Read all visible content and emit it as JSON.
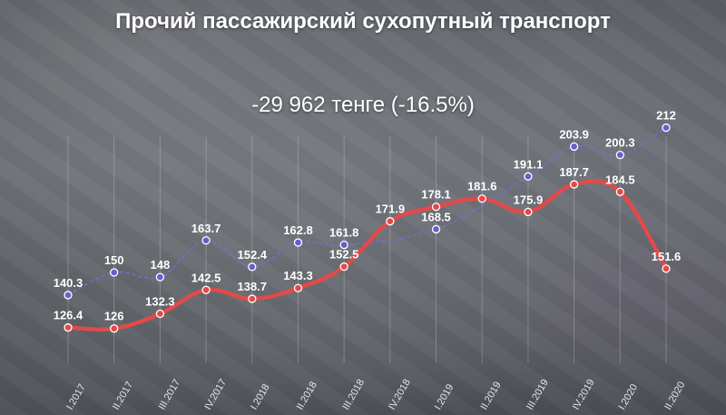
{
  "title": "Прочий пассажирский сухопутный транспорт",
  "subtitle": "-29 962 тенге (-16.5%)",
  "chart_data": {
    "type": "line",
    "categories": [
      "I.2017",
      "II.2017",
      "III.2017",
      "IV.2017",
      "I.2018",
      "II.2018",
      "III.2018",
      "IV.2018",
      "I.2019",
      "II.2019",
      "III.2019",
      "IV.2019",
      "I.2020",
      "II.2020"
    ],
    "series": [
      {
        "color": "#7a6ad8",
        "line_style": "dashed",
        "values": [
          140.3,
          150,
          148,
          163.7,
          152.4,
          162.8,
          161.8,
          null,
          168.5,
          null,
          191.1,
          203.9,
          200.3,
          212
        ],
        "labels": [
          "140.3",
          "150",
          "148",
          "163.7",
          "152.4",
          "162.8",
          "161.8",
          "",
          "168.5",
          "",
          "191.1",
          "203.9",
          "200.3",
          "212"
        ]
      },
      {
        "color": "#e24a4a",
        "line_style": "solid",
        "values": [
          126.4,
          126,
          132.3,
          142.5,
          138.7,
          143.3,
          152.5,
          171.9,
          178.1,
          181.6,
          175.9,
          187.7,
          184.5,
          151.6
        ],
        "labels": [
          "126.4",
          "126",
          "132.3",
          "142.5",
          "138.7",
          "143.3",
          "152.5",
          "171.9",
          "178.1",
          "181.6",
          "175.9",
          "187.7",
          "184.5",
          "151.6"
        ]
      }
    ],
    "ylim": [
      115,
      220
    ],
    "grid": "vertical"
  }
}
